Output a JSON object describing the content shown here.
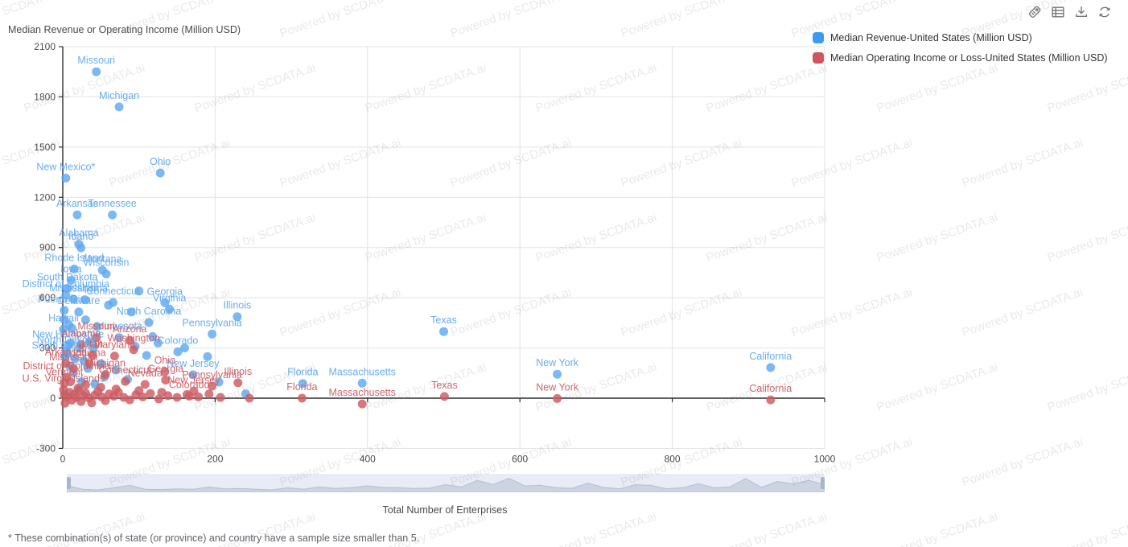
{
  "header": {
    "y_axis_title": "Median Revenue or Operating Income (Million USD)"
  },
  "toolbar": {
    "icons": [
      "mark-tag-icon",
      "data-view-icon",
      "download-icon",
      "refresh-icon"
    ]
  },
  "legend": [
    {
      "label": "Median Revenue-United States (Million USD)",
      "color": "#3d9af0"
    },
    {
      "label": "Median Operating Income or Loss-United States (Million USD)",
      "color": "#cf5560"
    }
  ],
  "watermark": {
    "text": "Powered by SCDATA.ai"
  },
  "footnote": "* These combination(s) of state (or province) and country have a sample size smaller than 5.",
  "chart_data": {
    "type": "scatter",
    "title": "",
    "xlabel": "Total Number of Enterprises",
    "ylabel": "Median Revenue or Operating Income (Million USD)",
    "xlim": [
      0,
      1000
    ],
    "ylim": [
      -300,
      2100
    ],
    "x_ticks": [
      0,
      200,
      400,
      600,
      800,
      1000
    ],
    "y_ticks": [
      2100,
      1800,
      1500,
      1200,
      900,
      600,
      300,
      0,
      -300
    ],
    "grid": true,
    "legend_position": "top-right",
    "series": [
      {
        "name": "Median Revenue-United States (Million USD)",
        "color": "#5fa9f1",
        "points": [
          [
            44,
            1950,
            "Missouri"
          ],
          [
            74,
            1740,
            "Michigan"
          ],
          [
            128,
            1345,
            "Ohio"
          ],
          [
            4,
            1315,
            "New Mexico*"
          ],
          [
            19,
            1095,
            "Arkansas"
          ],
          [
            65,
            1095,
            "Tennessee"
          ],
          [
            21,
            920,
            "Alabama"
          ],
          [
            24,
            898,
            "Idaho"
          ],
          [
            15,
            772,
            "Rhode Island"
          ],
          [
            52,
            765,
            "Montana"
          ],
          [
            57,
            742,
            "Wisconsin"
          ],
          [
            11,
            705,
            "Iowa"
          ],
          [
            6,
            655,
            "South Dakota"
          ],
          [
            4,
            615,
            "District of Columbia"
          ],
          [
            14,
            592,
            "Mississippi"
          ],
          [
            29,
            588,
            "Oklahoma"
          ],
          [
            66,
            572,
            "Connecticut"
          ],
          [
            134,
            570,
            "Georgia"
          ],
          [
            140,
            532,
            "Virginia"
          ],
          [
            2,
            525,
            "Puerto Rico"
          ],
          [
            21,
            515,
            "Delaware"
          ],
          [
            113,
            452,
            "North Carolina"
          ],
          [
            229,
            487,
            "Illinois"
          ],
          [
            196,
            383,
            "Pennsylvania"
          ],
          [
            1,
            412,
            "Hawaii"
          ],
          [
            74,
            362,
            "Minnesota"
          ],
          [
            7,
            315,
            "New Hampshire"
          ],
          [
            5,
            282,
            "North Dakota"
          ],
          [
            3,
            248,
            "South Carolina"
          ],
          [
            151,
            277,
            "Colorado"
          ],
          [
            171,
            140,
            "New Jersey"
          ],
          [
            500,
            398,
            "Texas"
          ],
          [
            315,
            88,
            "Florida"
          ],
          [
            393,
            90,
            "Massachusetts"
          ],
          [
            649,
            143,
            "New York"
          ],
          [
            929,
            183,
            "California"
          ],
          [
            2,
            470,
            ""
          ],
          [
            8,
            438,
            ""
          ],
          [
            30,
            468,
            ""
          ],
          [
            45,
            428,
            ""
          ],
          [
            90,
            515,
            ""
          ],
          [
            60,
            556,
            ""
          ],
          [
            100,
            640,
            ""
          ],
          [
            35,
            338,
            ""
          ],
          [
            10,
            330,
            ""
          ],
          [
            22,
            300,
            ""
          ],
          [
            40,
            298,
            ""
          ],
          [
            6,
            265,
            ""
          ],
          [
            16,
            235,
            ""
          ],
          [
            28,
            222,
            ""
          ],
          [
            50,
            205,
            ""
          ],
          [
            9,
            192,
            ""
          ],
          [
            33,
            178,
            ""
          ],
          [
            70,
            168,
            ""
          ],
          [
            14,
            150,
            ""
          ],
          [
            55,
            128,
            ""
          ],
          [
            85,
            112,
            ""
          ],
          [
            25,
            98,
            ""
          ],
          [
            42,
            85,
            ""
          ],
          [
            110,
            255,
            ""
          ],
          [
            95,
            310,
            ""
          ],
          [
            125,
            330,
            ""
          ],
          [
            160,
            300,
            ""
          ],
          [
            190,
            248,
            ""
          ],
          [
            240,
            26,
            ""
          ],
          [
            205,
            96,
            ""
          ],
          [
            12,
            418,
            ""
          ],
          [
            118,
            368,
            ""
          ]
        ]
      },
      {
        "name": "Median Operating Income or Loss-United States (Million USD)",
        "color": "#cd5c63",
        "points": [
          [
            44,
            362,
            "Missouri"
          ],
          [
            88,
            345,
            "Arizona"
          ],
          [
            24,
            320,
            "Alabama"
          ],
          [
            93,
            290,
            "Washington"
          ],
          [
            39,
            258,
            "Utah"
          ],
          [
            68,
            252,
            "Maryland"
          ],
          [
            4,
            208,
            "Arkansas"
          ],
          [
            35,
            205,
            "Indiana"
          ],
          [
            14,
            178,
            "Mississippi"
          ],
          [
            134,
            158,
            "Ohio"
          ],
          [
            56,
            142,
            "Michigan"
          ],
          [
            5,
            125,
            "District of Columbia"
          ],
          [
            135,
            108,
            "Georgia"
          ],
          [
            82,
            100,
            "Connecticut"
          ],
          [
            2,
            88,
            "Vermont"
          ],
          [
            230,
            92,
            "Illinois"
          ],
          [
            108,
            82,
            "Nevada"
          ],
          [
            196,
            72,
            "Pennsylvania"
          ],
          [
            1,
            50,
            "U.S. Virgin Islands"
          ],
          [
            172,
            42,
            "New Jersey"
          ],
          [
            166,
            12,
            "Colorado"
          ],
          [
            314,
            0,
            "Florida"
          ],
          [
            393,
            -34,
            "Massachusetts"
          ],
          [
            501,
            10,
            "Texas"
          ],
          [
            649,
            -2,
            "New York"
          ],
          [
            929,
            -10,
            "California"
          ],
          [
            2,
            20,
            ""
          ],
          [
            3,
            -30,
            ""
          ],
          [
            6,
            8,
            ""
          ],
          [
            9,
            35,
            ""
          ],
          [
            12,
            -12,
            ""
          ],
          [
            15,
            22,
            ""
          ],
          [
            18,
            5,
            ""
          ],
          [
            21,
            48,
            ""
          ],
          [
            24,
            -20,
            ""
          ],
          [
            27,
            15,
            ""
          ],
          [
            30,
            30,
            ""
          ],
          [
            34,
            2,
            ""
          ],
          [
            38,
            -28,
            ""
          ],
          [
            42,
            18,
            ""
          ],
          [
            46,
            40,
            ""
          ],
          [
            51,
            8,
            ""
          ],
          [
            56,
            -15,
            ""
          ],
          [
            61,
            25,
            ""
          ],
          [
            67,
            12,
            ""
          ],
          [
            73,
            35,
            ""
          ],
          [
            80,
            5,
            ""
          ],
          [
            88,
            -10,
            ""
          ],
          [
            96,
            20,
            ""
          ],
          [
            105,
            8,
            ""
          ],
          [
            115,
            28,
            ""
          ],
          [
            126,
            -5,
            ""
          ],
          [
            138,
            15,
            ""
          ],
          [
            150,
            5,
            ""
          ],
          [
            163,
            22,
            ""
          ],
          [
            178,
            8,
            ""
          ],
          [
            192,
            25,
            ""
          ],
          [
            207,
            5,
            ""
          ],
          [
            245,
            0,
            ""
          ],
          [
            20,
            60,
            ""
          ],
          [
            10,
            98,
            ""
          ],
          [
            50,
            65,
            ""
          ],
          [
            30,
            80,
            ""
          ],
          [
            70,
            55,
            ""
          ],
          [
            100,
            45,
            ""
          ],
          [
            130,
            35,
            ""
          ]
        ]
      }
    ],
    "datazoom_profile": [
      0.45,
      0.2,
      0.15,
      0.3,
      0.45,
      0.2,
      0.18,
      0.22,
      0.2,
      0.35,
      0.22,
      0.25,
      0.2,
      0.16,
      0.3,
      0.2,
      0.36,
      0.25,
      0.3,
      0.42,
      0.33,
      0.3,
      0.25,
      0.28,
      0.5,
      0.35,
      0.78,
      0.5,
      0.92,
      0.42,
      0.45,
      0.3,
      0.26,
      0.6,
      0.32,
      0.22,
      0.5,
      0.45,
      0.22,
      0.3,
      0.56,
      0.3,
      0.36,
      0.9,
      0.32,
      0.7,
      0.55,
      0.78,
      0.5
    ]
  }
}
